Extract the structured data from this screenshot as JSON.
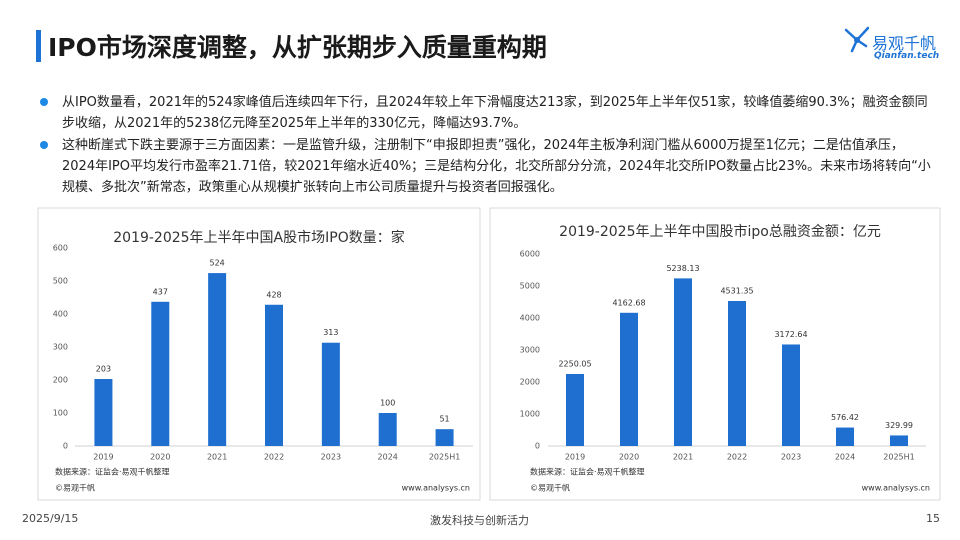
{
  "header": {
    "title": "IPO市场深度调整，从扩张期步入质量重构期",
    "logo_name": "易观千帆",
    "logo_sub": "Qianfan.tech"
  },
  "bullets": [
    "从IPO数量看，2021年的524家峰值后连续四年下行，且2024年较上年下滑幅度达213家，到2025年上半年仅51家，较峰值萎缩90.3%；融资金额同步收缩，从2021年的5238亿元降至2025年上半年的330亿元，降幅达93.7%。",
    "这种断崖式下跌主要源于三方面因素：一是监管升级，注册制下“申报即担责”强化，2024年主板净利润门槛从6000万提至1亿元；二是估值承压，2024年IPO平均发行市盈率21.71倍，较2021年缩水近40%；三是结构分化，北交所部分分流，2024年北交所IPO数量占比23%。未来市场将转向“小规模、多批次”新常态，政策重心从规模扩张转向上市公司质量提升与投资者回报强化。"
  ],
  "chart_data": [
    {
      "type": "bar",
      "title": "2019-2025年上半年中国A股市场IPO数量：家",
      "categories": [
        "2019",
        "2020",
        "2021",
        "2022",
        "2023",
        "2024",
        "2025H1"
      ],
      "values": [
        203,
        437,
        524,
        428,
        313,
        100,
        51
      ],
      "color": "#1e6fd0",
      "ylim": [
        0,
        600
      ],
      "yticks": [
        0,
        100,
        200,
        300,
        400,
        500,
        600
      ],
      "source": "数据来源：证监会·易观千帆整理",
      "copyright": "©易观千帆",
      "website": "www.analysys.cn"
    },
    {
      "type": "bar",
      "title": "2019-2025年上半年中国股市ipo总融资金额：亿元",
      "categories": [
        "2019",
        "2020",
        "2021",
        "2022",
        "2023",
        "2024",
        "2025H1"
      ],
      "values": [
        2250.05,
        4162.68,
        5238.13,
        4531.35,
        3172.64,
        576.42,
        329.99
      ],
      "color": "#1e6fd0",
      "ylim": [
        0,
        6000
      ],
      "yticks": [
        0,
        1000,
        2000,
        3000,
        4000,
        5000,
        6000
      ],
      "source": "数据来源：证监会·易观千帆整理",
      "copyright": "©易观千帆",
      "website": "www.analysys.cn"
    }
  ],
  "footer": {
    "date": "2025/9/15",
    "slogan": "激发科技与创新活力",
    "page": "15"
  }
}
